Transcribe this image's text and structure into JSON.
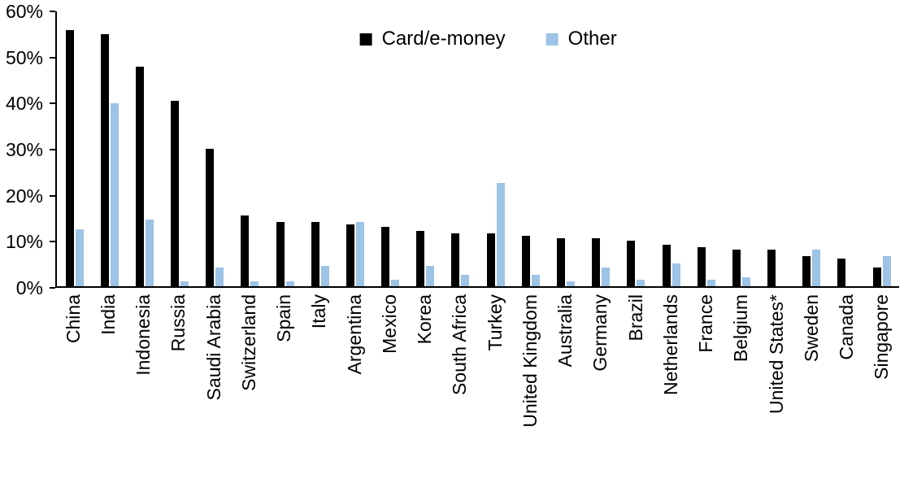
{
  "chart_data": {
    "type": "bar",
    "title": "",
    "xlabel": "",
    "ylabel": "",
    "ylim": [
      0,
      60
    ],
    "ytick_interval": 10,
    "ytick_suffix": "%",
    "grid": false,
    "legend_position": "top-center",
    "categories": [
      "China",
      "India",
      "Indonesia",
      "Russia",
      "Saudi Arabia",
      "Switzerland",
      "Spain",
      "Italy",
      "Argentina",
      "Mexico",
      "Korea",
      "South Africa",
      "Turkey",
      "United Kingdom",
      "Australia",
      "Germany",
      "Brazil",
      "Netherlands",
      "France",
      "Belgium",
      "United States*",
      "Sweden",
      "Canada",
      "Singapore"
    ],
    "series": [
      {
        "name": "Card/e-money",
        "color": "#000000",
        "values": [
          56,
          55,
          48,
          40.5,
          30,
          15.5,
          14,
          14,
          13.5,
          13,
          12,
          11.5,
          11.5,
          11,
          10.5,
          10.5,
          10,
          9,
          8.5,
          8,
          8,
          6.5,
          6,
          4
        ]
      },
      {
        "name": "Other",
        "color": "#9dc3e6",
        "values": [
          12.5,
          40,
          14.5,
          1,
          4,
          1,
          1,
          4.5,
          14,
          1.5,
          4.5,
          2.5,
          22.5,
          2.5,
          1,
          4,
          1.5,
          5,
          1.5,
          2,
          0,
          8,
          0,
          6.5
        ]
      }
    ]
  }
}
